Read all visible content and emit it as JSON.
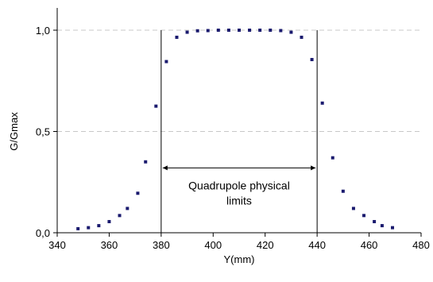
{
  "chart_data": {
    "type": "scatter",
    "xlabel": "Y(mm)",
    "ylabel": "G/Gmax",
    "xlim": [
      340,
      480
    ],
    "ylim": [
      0,
      1
    ],
    "xticks": [
      "340",
      "360",
      "380",
      "400",
      "420",
      "440",
      "460",
      "480"
    ],
    "yticks": [
      "0,0",
      "0,5",
      "1,0"
    ],
    "grid": "horizontal dashed",
    "legend": "none",
    "marker_color": "#1a1a6e",
    "series": [
      {
        "x": [
          348,
          352,
          356,
          360,
          364,
          367,
          371,
          374,
          378,
          382,
          386,
          390,
          394,
          398,
          402,
          406,
          410,
          414,
          418,
          422,
          426,
          430,
          434,
          438,
          442,
          446,
          450,
          454,
          458,
          462,
          465,
          469
        ],
        "y": [
          0.02,
          0.025,
          0.035,
          0.055,
          0.085,
          0.12,
          0.195,
          0.35,
          0.625,
          0.845,
          0.965,
          0.99,
          0.997,
          0.998,
          1.0,
          1.0,
          1.0,
          1.0,
          1.0,
          1.0,
          0.998,
          0.99,
          0.965,
          0.855,
          0.64,
          0.37,
          0.205,
          0.12,
          0.085,
          0.055,
          0.035,
          0.025
        ]
      }
    ],
    "reference_lines_x": [
      380,
      440
    ],
    "annotation": {
      "text_line1": "Quadrupole physical",
      "text_line2": "limits",
      "arrow_from": 380,
      "arrow_to": 440,
      "arrow_y": 0.32
    }
  }
}
